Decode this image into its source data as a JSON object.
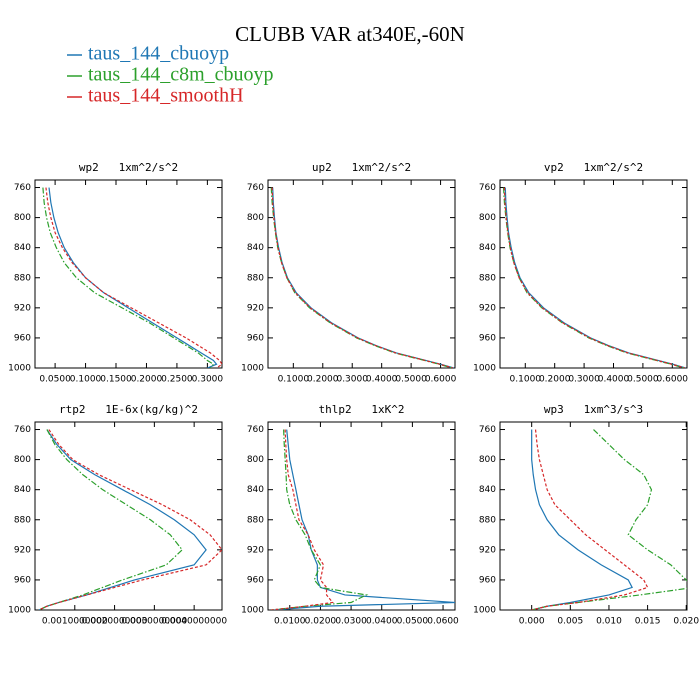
{
  "title": "CLUBB VAR at340E,-60N",
  "chart_data": [
    {
      "type": "line",
      "title": "wp2   1xm^2/s^2",
      "y": [
        760,
        780,
        800,
        820,
        840,
        860,
        880,
        900,
        920,
        940,
        960,
        970,
        980,
        990,
        995,
        1000
      ],
      "ylim": [
        1000,
        750
      ],
      "yticks": [
        760,
        800,
        840,
        880,
        920,
        960,
        1000
      ],
      "xlim": [
        0.017,
        0.324
      ],
      "xticks": [
        {
          "value": 0.05,
          "label": "0.0500"
        },
        {
          "value": 0.1,
          "label": "0.1000"
        },
        {
          "value": 0.15,
          "label": "0.1500"
        },
        {
          "value": 0.2,
          "label": "0.2000"
        },
        {
          "value": 0.25,
          "label": "0.2500"
        },
        {
          "value": 0.3,
          "label": "0.3000"
        }
      ],
      "series": [
        {
          "name": "taus_144_cbuoyp",
          "color": "#1f77b4",
          "style": "solid",
          "values": [
            0.04,
            0.043,
            0.048,
            0.055,
            0.065,
            0.08,
            0.1,
            0.13,
            0.17,
            0.21,
            0.25,
            0.27,
            0.29,
            0.31,
            0.315,
            0.3
          ]
        },
        {
          "name": "taus_144_c8m_cbuoyp",
          "color": "#2ca02c",
          "style": "dashdot",
          "values": [
            0.03,
            0.032,
            0.036,
            0.042,
            0.052,
            0.065,
            0.085,
            0.115,
            0.16,
            0.205,
            0.245,
            0.265,
            0.285,
            0.3,
            0.31,
            0.305
          ]
        },
        {
          "name": "taus_144_smoothH",
          "color": "#d62728",
          "style": "dashed",
          "values": [
            0.035,
            0.038,
            0.043,
            0.05,
            0.062,
            0.078,
            0.1,
            0.13,
            0.175,
            0.22,
            0.265,
            0.285,
            0.305,
            0.32,
            0.324,
            0.315
          ]
        }
      ]
    },
    {
      "type": "line",
      "title": "up2   1xm^2/s^2",
      "y": [
        760,
        780,
        800,
        820,
        840,
        860,
        880,
        900,
        920,
        940,
        960,
        970,
        980,
        990,
        995,
        1000
      ],
      "ylim": [
        1000,
        750
      ],
      "yticks": [
        760,
        800,
        840,
        880,
        920,
        960,
        1000
      ],
      "xlim": [
        0.014,
        0.649
      ],
      "xticks": [
        {
          "value": 0.1,
          "label": "0.1000"
        },
        {
          "value": 0.2,
          "label": "0.2000"
        },
        {
          "value": 0.3,
          "label": "0.3000"
        },
        {
          "value": 0.4,
          "label": "0.4000"
        },
        {
          "value": 0.5,
          "label": "0.5000"
        },
        {
          "value": 0.6,
          "label": "0.6000"
        }
      ],
      "series": [
        {
          "name": "taus_144_cbuoyp",
          "color": "#1f77b4",
          "style": "solid",
          "values": [
            0.03,
            0.032,
            0.036,
            0.041,
            0.05,
            0.062,
            0.08,
            0.11,
            0.16,
            0.23,
            0.32,
            0.38,
            0.45,
            0.55,
            0.6,
            0.645
          ]
        },
        {
          "name": "taus_144_c8m_cbuoyp",
          "color": "#2ca02c",
          "style": "dashdot",
          "values": [
            0.025,
            0.028,
            0.033,
            0.039,
            0.047,
            0.06,
            0.078,
            0.105,
            0.155,
            0.225,
            0.315,
            0.375,
            0.445,
            0.545,
            0.595,
            0.64
          ]
        },
        {
          "name": "taus_144_smoothH",
          "color": "#d62728",
          "style": "dashed",
          "values": [
            0.028,
            0.03,
            0.034,
            0.04,
            0.048,
            0.06,
            0.078,
            0.107,
            0.157,
            0.227,
            0.318,
            0.378,
            0.448,
            0.548,
            0.598,
            0.642
          ]
        }
      ]
    },
    {
      "type": "line",
      "title": "vp2   1xm^2/s^2",
      "y": [
        760,
        780,
        800,
        820,
        840,
        860,
        880,
        900,
        920,
        940,
        960,
        970,
        980,
        990,
        995,
        1000
      ],
      "ylim": [
        1000,
        750
      ],
      "yticks": [
        760,
        800,
        840,
        880,
        920,
        960,
        1000
      ],
      "xlim": [
        0.014,
        0.65
      ],
      "xticks": [
        {
          "value": 0.1,
          "label": "0.1000"
        },
        {
          "value": 0.2,
          "label": "0.2000"
        },
        {
          "value": 0.3,
          "label": "0.3000"
        },
        {
          "value": 0.4,
          "label": "0.4000"
        },
        {
          "value": 0.5,
          "label": "0.5000"
        },
        {
          "value": 0.6,
          "label": "0.6000"
        }
      ],
      "series": [
        {
          "name": "taus_144_cbuoyp",
          "color": "#1f77b4",
          "style": "solid",
          "values": [
            0.032,
            0.034,
            0.038,
            0.043,
            0.052,
            0.064,
            0.082,
            0.112,
            0.162,
            0.232,
            0.322,
            0.382,
            0.452,
            0.552,
            0.602,
            0.645
          ]
        },
        {
          "name": "taus_144_c8m_cbuoyp",
          "color": "#2ca02c",
          "style": "dashdot",
          "values": [
            0.026,
            0.029,
            0.034,
            0.04,
            0.048,
            0.061,
            0.079,
            0.106,
            0.156,
            0.226,
            0.316,
            0.376,
            0.446,
            0.546,
            0.596,
            0.64
          ]
        },
        {
          "name": "taus_144_smoothH",
          "color": "#d62728",
          "style": "dashed",
          "values": [
            0.029,
            0.031,
            0.035,
            0.041,
            0.049,
            0.061,
            0.079,
            0.108,
            0.158,
            0.228,
            0.319,
            0.379,
            0.449,
            0.549,
            0.599,
            0.643
          ]
        }
      ]
    },
    {
      "type": "line",
      "title": "rtp2   1E-6x(kg/kg)^2",
      "y": [
        760,
        780,
        800,
        820,
        840,
        860,
        880,
        900,
        920,
        940,
        960,
        970,
        980,
        990,
        995,
        1000
      ],
      "ylim": [
        1000,
        750
      ],
      "yticks": [
        760,
        800,
        840,
        880,
        920,
        960,
        1000
      ],
      "xlim": [
        0,
        0.0047
      ],
      "xticks": [
        {
          "value": 0.001,
          "label": "0.0010000000"
        },
        {
          "value": 0.002,
          "label": "0.0020000000"
        },
        {
          "value": 0.003,
          "label": "0.0030000000"
        },
        {
          "value": 0.004,
          "label": "0.0040000000"
        }
      ],
      "series": [
        {
          "name": "taus_144_cbuoyp",
          "color": "#1f77b4",
          "style": "solid",
          "values": [
            0.0003,
            0.00055,
            0.0009,
            0.0015,
            0.0022,
            0.0029,
            0.0035,
            0.004,
            0.0043,
            0.004,
            0.0025,
            0.0019,
            0.0013,
            0.0006,
            0.0003,
            0.0001
          ]
        },
        {
          "name": "taus_144_c8m_cbuoyp",
          "color": "#2ca02c",
          "style": "dashdot",
          "values": [
            0.0003,
            0.0005,
            0.0008,
            0.0012,
            0.0017,
            0.0023,
            0.0029,
            0.0034,
            0.0037,
            0.0033,
            0.0022,
            0.0017,
            0.0012,
            0.0006,
            0.0003,
            0.0001
          ]
        },
        {
          "name": "taus_144_smoothH",
          "color": "#d62728",
          "style": "dashed",
          "values": [
            0.00035,
            0.0006,
            0.00095,
            0.0016,
            0.0024,
            0.0032,
            0.0039,
            0.0044,
            0.0047,
            0.0043,
            0.0027,
            0.002,
            0.0013,
            0.0006,
            0.0003,
            0.0001
          ]
        }
      ]
    },
    {
      "type": "line",
      "title": "thlp2   1xK^2",
      "y": [
        760,
        780,
        800,
        820,
        840,
        860,
        880,
        900,
        920,
        940,
        960,
        970,
        980,
        990,
        995,
        1000
      ],
      "ylim": [
        1000,
        750
      ],
      "yticks": [
        760,
        800,
        840,
        880,
        920,
        960,
        1000
      ],
      "xlim": [
        0.0029,
        0.0639
      ],
      "xticks": [
        {
          "value": 0.01,
          "label": "0.0100"
        },
        {
          "value": 0.02,
          "label": "0.0200"
        },
        {
          "value": 0.03,
          "label": "0.0300"
        },
        {
          "value": 0.04,
          "label": "0.0400"
        },
        {
          "value": 0.05,
          "label": "0.0500"
        },
        {
          "value": 0.06,
          "label": "0.0600"
        }
      ],
      "series": [
        {
          "name": "taus_144_cbuoyp",
          "color": "#1f77b4",
          "style": "solid",
          "values": [
            0.009,
            0.0095,
            0.01,
            0.011,
            0.012,
            0.013,
            0.014,
            0.016,
            0.017,
            0.019,
            0.019,
            0.02,
            0.028,
            0.064,
            0.02,
            0.005
          ]
        },
        {
          "name": "taus_144_c8m_cbuoyp",
          "color": "#2ca02c",
          "style": "dashdot",
          "values": [
            0.008,
            0.0082,
            0.0085,
            0.0088,
            0.009,
            0.01,
            0.012,
            0.015,
            0.017,
            0.02,
            0.018,
            0.02,
            0.035,
            0.03,
            0.015,
            0.004
          ]
        },
        {
          "name": "taus_144_smoothH",
          "color": "#d62728",
          "style": "dashed",
          "values": [
            0.0085,
            0.0087,
            0.009,
            0.0095,
            0.011,
            0.012,
            0.013,
            0.016,
            0.018,
            0.021,
            0.02,
            0.022,
            0.022,
            0.024,
            0.015,
            0.004
          ]
        }
      ]
    },
    {
      "type": "line",
      "title": "wp3   1xm^3/s^3",
      "y": [
        760,
        780,
        800,
        820,
        840,
        860,
        880,
        900,
        920,
        940,
        960,
        970,
        980,
        990,
        995,
        1000
      ],
      "ylim": [
        1000,
        750
      ],
      "yticks": [
        760,
        800,
        840,
        880,
        920,
        960,
        1000
      ],
      "xlim": [
        -0.0041,
        0.0201
      ],
      "xticks": [
        {
          "value": 0.0,
          "label": "0.000"
        },
        {
          "value": 0.005,
          "label": "0.005"
        },
        {
          "value": 0.01,
          "label": "0.010"
        },
        {
          "value": 0.015,
          "label": "0.015"
        },
        {
          "value": 0.02,
          "label": "0.020"
        }
      ],
      "series": [
        {
          "name": "taus_144_cbuoyp",
          "color": "#1f77b4",
          "style": "solid",
          "values": [
            0.0,
            0.0,
            0.0,
            0.0002,
            0.0005,
            0.001,
            0.002,
            0.0035,
            0.006,
            0.009,
            0.0125,
            0.013,
            0.01,
            0.005,
            0.002,
            0.0
          ]
        },
        {
          "name": "taus_144_c8m_cbuoyp",
          "color": "#2ca02c",
          "style": "dashdot",
          "values": [
            0.008,
            0.01,
            0.012,
            0.0145,
            0.0155,
            0.015,
            0.0135,
            0.0125,
            0.015,
            0.018,
            0.02,
            0.021,
            0.014,
            0.006,
            0.002,
            0.0
          ]
        },
        {
          "name": "taus_144_smoothH",
          "color": "#d62728",
          "style": "dashed",
          "values": [
            0.0005,
            0.0007,
            0.001,
            0.0015,
            0.002,
            0.003,
            0.005,
            0.007,
            0.0095,
            0.012,
            0.0145,
            0.015,
            0.012,
            0.006,
            0.002,
            0.0
          ]
        }
      ]
    }
  ]
}
